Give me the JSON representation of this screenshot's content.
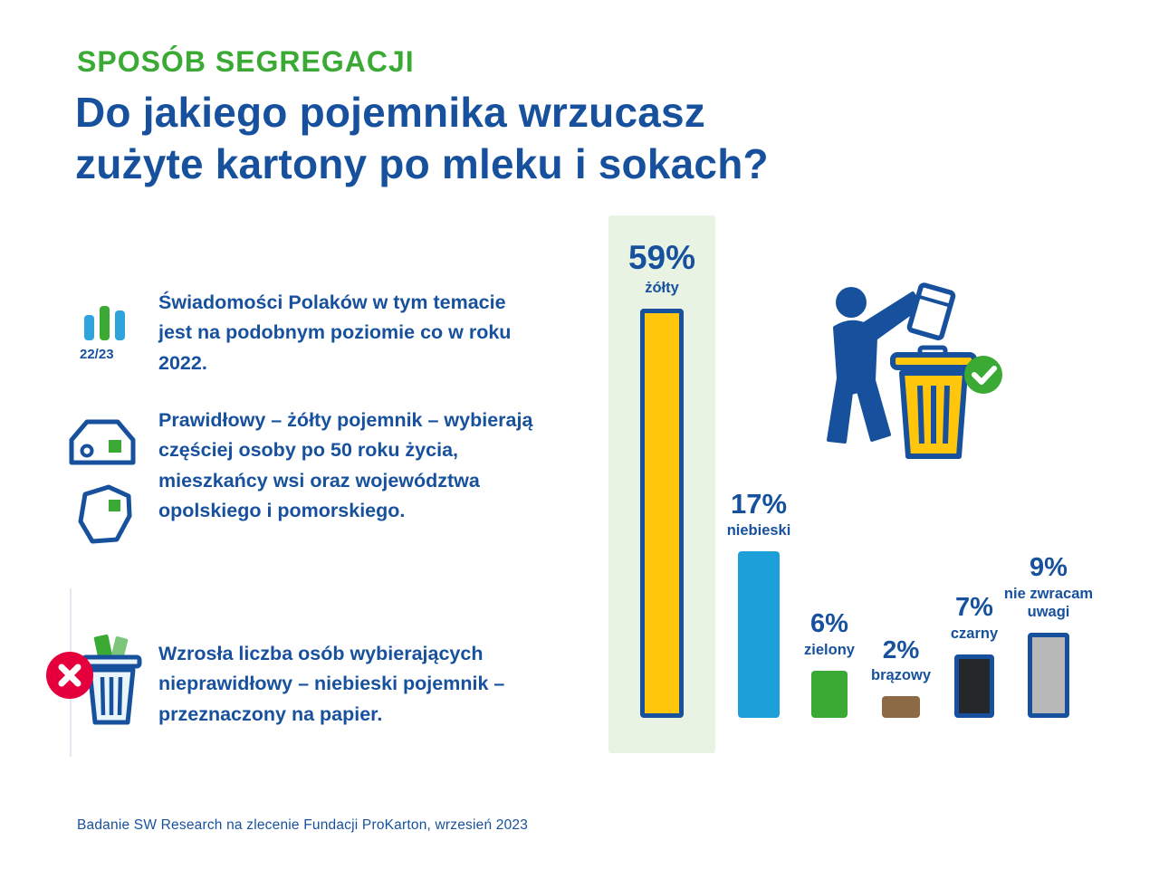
{
  "page": {
    "eyebrow": "SPOSÓB SEGREGACJI",
    "title_lines": [
      "Do jakiego pojemnika wrzucasz",
      "zużyte kartony po mleku i sokach?"
    ],
    "footer": "Badanie SW Research na zlecenie Fundacji ProKarton, wrzesień 2023"
  },
  "facts": [
    {
      "icons": [
        "mini-bar-chart-icon"
      ],
      "badge": "22/23",
      "text": "Świadomości Polaków w tym temacie jest na podobnym poziomie co w roku 2022."
    },
    {
      "icons": [
        "house-icon",
        "map-icon"
      ],
      "text": "Prawidłowy – żółty pojemnik – wybierają częściej osoby po 50 roku życia, mieszkańcy wsi oraz województwa opolskiego i pomorskiego."
    },
    {
      "icons": [
        "crossed-out-bin-icon"
      ],
      "text": "Wzrosła liczba osób wybierających nieprawidłowy – niebieski pojemnik – przeznaczony na papier."
    }
  ],
  "illustration_icons": [
    "person-icon",
    "carton-icon",
    "yellow-bin-icon",
    "check-circle-icon"
  ],
  "chart_data": {
    "type": "bar",
    "title": "Do jakiego pojemnika wrzucasz zużyte kartony po mleku i sokach?",
    "categories": [
      "żółty",
      "niebieski",
      "zielony",
      "brązowy",
      "czarny",
      "nie zwracam uwagi"
    ],
    "values": [
      59,
      17,
      6,
      2,
      7,
      9
    ],
    "unit": "%",
    "bar_colors": [
      "#ffc60b",
      "#1d9fd9",
      "#3aaa35",
      "#8c6a45",
      "#25282b",
      "#b9b9b9"
    ],
    "highlight_index": 0,
    "highlight_bg": "#e8f3e4",
    "ylim": [
      0,
      60
    ],
    "grid": false,
    "legend": "none"
  },
  "colors": {
    "green": "#3aaa35",
    "navy": "#17519d",
    "red": "#e5003d",
    "yellow": "#ffc60b",
    "panel_green": "#e8f3e4"
  }
}
